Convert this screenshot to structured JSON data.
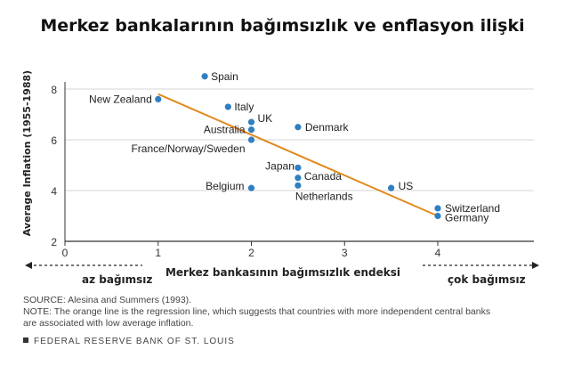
{
  "title": "Merkez bankalarının bağımsızlık ve enflasyon ilişki",
  "chart_data": {
    "type": "scatter",
    "ylabel": "Average Inflation (1955-1988)",
    "xlabel": "Merkez bankasının bağımsızlık endeksi",
    "xlim": [
      0,
      4
    ],
    "ylim": [
      2,
      8
    ],
    "xticks": [
      "0",
      "1",
      "2",
      "3",
      "4"
    ],
    "yticks": [
      "2",
      "4",
      "6",
      "8"
    ],
    "grid": "horizontal",
    "point_color": "#2f7fc1",
    "line_color": "#e08a1e",
    "points": [
      {
        "label": "Spain",
        "x": 1.5,
        "y": 8.5
      },
      {
        "label": "New Zealand",
        "x": 1.0,
        "y": 7.6
      },
      {
        "label": "Italy",
        "x": 1.75,
        "y": 7.3
      },
      {
        "label": "UK",
        "x": 2.0,
        "y": 6.7
      },
      {
        "label": "Australia",
        "x": 2.0,
        "y": 6.4
      },
      {
        "label": "France/Norway/Sweden",
        "x": 2.0,
        "y": 6.0
      },
      {
        "label": "Denmark",
        "x": 2.5,
        "y": 6.5
      },
      {
        "label": "Japan",
        "x": 2.5,
        "y": 4.9
      },
      {
        "label": "Canada",
        "x": 2.5,
        "y": 4.5
      },
      {
        "label": "Netherlands",
        "x": 2.5,
        "y": 4.2
      },
      {
        "label": "Belgium",
        "x": 2.0,
        "y": 4.1
      },
      {
        "label": "US",
        "x": 3.5,
        "y": 4.1
      },
      {
        "label": "Switzerland",
        "x": 4.0,
        "y": 3.3
      },
      {
        "label": "Germany",
        "x": 4.0,
        "y": 3.0
      }
    ],
    "regression_line": {
      "x": [
        1.0,
        4.0
      ],
      "y": [
        7.8,
        3.0
      ]
    }
  },
  "annotations": {
    "left_arrow": "az bağımsız",
    "right_arrow": "çok bağımsız"
  },
  "notes": {
    "source": "SOURCE: Alesina and Summers (1993).",
    "note_line1": "NOTE: The orange line is the regression line, which suggests that countries with more independent central banks",
    "note_line2": "are associated with low average inflation.",
    "publisher": "FEDERAL RESERVE BANK OF ST. LOUIS"
  }
}
